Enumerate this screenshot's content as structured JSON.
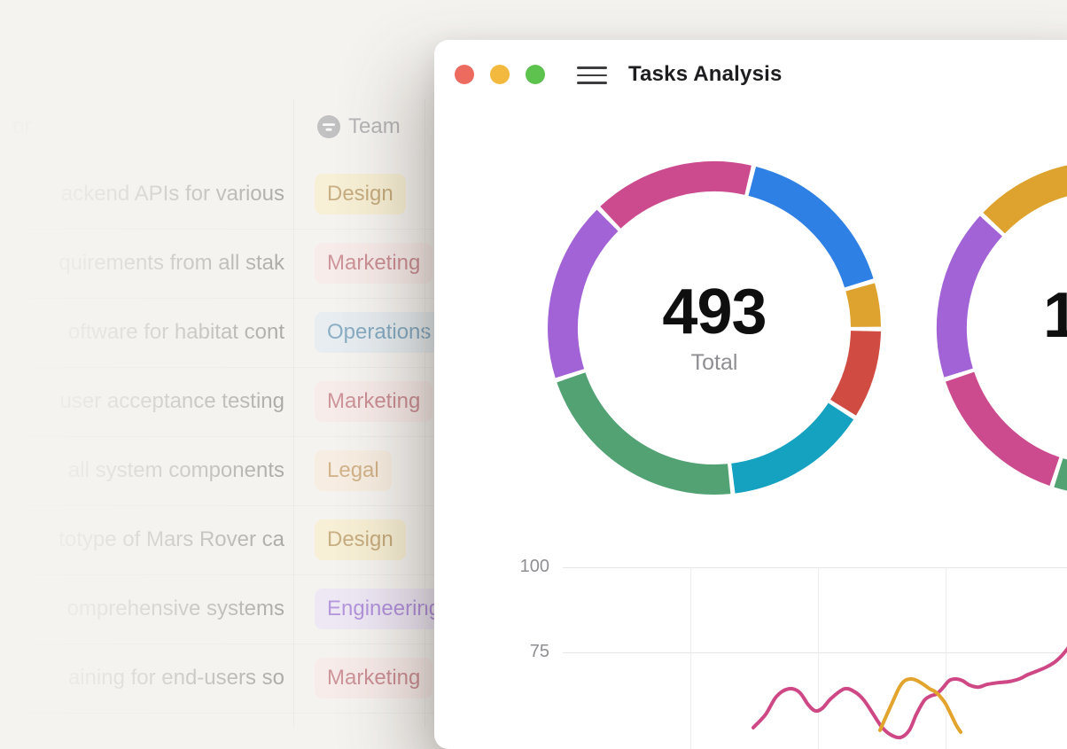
{
  "page": {
    "background": "#f5f3f0"
  },
  "background_table": {
    "header": {
      "partial_label": "or",
      "team_label": "Team"
    },
    "rows": [
      {
        "task": "ackend APIs for various",
        "team": "Design"
      },
      {
        "task": "quirements from all stak",
        "team": "Marketing"
      },
      {
        "task": "oftware for habitat cont",
        "team": "Operations"
      },
      {
        "task": "user acceptance testing",
        "team": "Marketing"
      },
      {
        "task": "all system components",
        "team": "Legal"
      },
      {
        "task": "totype of Mars Rover ca",
        "team": "Design"
      },
      {
        "task": "omprehensive systems",
        "team": "Engineering"
      },
      {
        "task": "aining for end-users so",
        "team": "Marketing"
      }
    ],
    "badge_colors": {
      "Design": {
        "bg": "#f9edc4",
        "text": "#a9813a"
      },
      "Marketing": {
        "bg": "#f9e6e6",
        "text": "#b25560"
      },
      "Operations": {
        "bg": "#dee9f0",
        "text": "#4480a7"
      },
      "Legal": {
        "bg": "#f9ead9",
        "text": "#bb8a4a"
      },
      "Engineering": {
        "bg": "#eae1f8",
        "text": "#8a5ad0"
      }
    }
  },
  "window": {
    "title": "Tasks Analysis",
    "traffic_lights": [
      "#ed6a5e",
      "#f3b93e",
      "#5ec24f"
    ]
  },
  "chart_data": [
    {
      "type": "donut",
      "center_label": {
        "value": "493",
        "caption": "Total"
      },
      "rotation_deg": -44,
      "total": 493,
      "segments": [
        {
          "name": "pink",
          "value": 79,
          "color": "#cc4b8e"
        },
        {
          "name": "blue",
          "value": 82,
          "color": "#2e80e4"
        },
        {
          "name": "yellow",
          "value": 23,
          "color": "#dea32f"
        },
        {
          "name": "red",
          "value": 44,
          "color": "#d04b41"
        },
        {
          "name": "teal",
          "value": 70,
          "color": "#14a2c0"
        },
        {
          "name": "green",
          "value": 107,
          "color": "#52a274"
        },
        {
          "name": "purple",
          "value": 88,
          "color": "#a263d6"
        }
      ]
    },
    {
      "type": "donut",
      "center_label": {
        "visible_value": "1"
      },
      "rotation_deg": -47,
      "segments": [
        {
          "name": "yellow",
          "value": 77,
          "color": "#dea32f"
        },
        {
          "name": "blue",
          "value": 60,
          "color": "#2e80e4"
        },
        {
          "name": "red",
          "value": 35,
          "color": "#d04b41"
        },
        {
          "name": "teal",
          "value": 35,
          "color": "#14a2c0"
        },
        {
          "name": "green",
          "value": 38,
          "color": "#52a274"
        },
        {
          "name": "pink",
          "value": 54,
          "color": "#cc4b8e"
        },
        {
          "name": "purple",
          "value": 61,
          "color": "#a263d6"
        }
      ]
    },
    {
      "type": "line",
      "y_axis": {
        "ticks": [
          100,
          75
        ]
      },
      "grid": true,
      "series": [
        {
          "name": "pink-series",
          "color": "#cf4886",
          "points": [
            [
              360,
              52.9
            ],
            [
              374,
              56.8
            ],
            [
              386,
              62.0
            ],
            [
              400,
              64.3
            ],
            [
              412,
              63.3
            ],
            [
              422,
              59.6
            ],
            [
              430,
              57.8
            ],
            [
              438,
              58.6
            ],
            [
              448,
              61.5
            ],
            [
              463,
              64.3
            ],
            [
              475,
              63.3
            ],
            [
              485,
              60.9
            ],
            [
              495,
              57.0
            ],
            [
              505,
              53.1
            ],
            [
              515,
              50.8
            ],
            [
              526,
              50.0
            ],
            [
              536,
              52.1
            ],
            [
              544,
              56.8
            ],
            [
              553,
              60.9
            ],
            [
              560,
              62.2
            ],
            [
              567,
              62.8
            ],
            [
              574,
              64.6
            ],
            [
              581,
              66.7
            ],
            [
              588,
              67.2
            ],
            [
              596,
              66.7
            ],
            [
              604,
              65.4
            ],
            [
              614,
              64.8
            ],
            [
              624,
              65.6
            ],
            [
              636,
              66.1
            ],
            [
              648,
              66.4
            ],
            [
              660,
              67.2
            ],
            [
              670,
              68.5
            ],
            [
              680,
              69.5
            ],
            [
              690,
              70.6
            ],
            [
              700,
              72.1
            ],
            [
              708,
              74.0
            ],
            [
              716,
              76.6
            ]
          ]
        },
        {
          "name": "orange-series",
          "color": "#e2a42c",
          "points": [
            [
              503,
              52.1
            ],
            [
              510,
              56.3
            ],
            [
              518,
              60.9
            ],
            [
              525,
              64.8
            ],
            [
              531,
              66.7
            ],
            [
              538,
              67.2
            ],
            [
              545,
              66.7
            ],
            [
              552,
              65.6
            ],
            [
              559,
              64.3
            ],
            [
              565,
              63.5
            ],
            [
              571,
              62.0
            ],
            [
              577,
              59.9
            ],
            [
              583,
              56.8
            ],
            [
              589,
              53.6
            ],
            [
              594,
              51.6
            ]
          ]
        }
      ]
    }
  ]
}
